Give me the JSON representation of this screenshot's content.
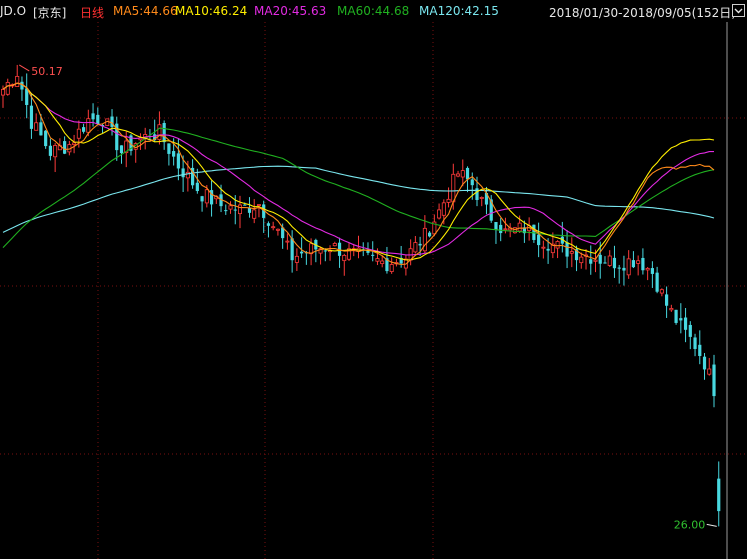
{
  "header": {
    "symbol": "JD.O",
    "name": "[京东]",
    "period": "日线",
    "ma5": "MA5:44.66",
    "ma10": "MA10:46.24",
    "ma20": "MA20:45.63",
    "ma60": "MA60:44.68",
    "ma120": "MA120:42.15",
    "range": "2018/01/30-2018/09/05(152日)",
    "dropdown_icon": "chevron-down-icon"
  },
  "colors": {
    "up": "#ff3b3b",
    "down": "#48d8e0",
    "ma5": "#ff8a1a",
    "ma10": "#ffee00",
    "ma20": "#e22be2",
    "ma60": "#20b020",
    "ma120": "#7ae6ee",
    "grid": "#7a0f0f",
    "background": "#000000",
    "high_label": "#ff5050",
    "low_label": "#30c030"
  },
  "chart_data": {
    "type": "candlestick",
    "title": "",
    "xlabel": "",
    "ylabel": "",
    "period_start": "2018/01/30",
    "period_end": "2018/09/05",
    "trading_days": 152,
    "ylim": [
      24.5,
      52
    ],
    "grid": true,
    "annotations": [
      {
        "text": "50.17",
        "type": "high",
        "value": 50.17
      },
      {
        "text": "26.00",
        "type": "low",
        "value": 26.0
      }
    ],
    "anchors_close": [
      [
        0,
        48.9
      ],
      [
        3,
        49.8
      ],
      [
        6,
        47.2
      ],
      [
        10,
        45.6
      ],
      [
        14,
        46.0
      ],
      [
        18,
        47.3
      ],
      [
        21,
        47.4
      ],
      [
        25,
        45.6
      ],
      [
        29,
        46.3
      ],
      [
        33,
        46.6
      ],
      [
        37,
        44.9
      ],
      [
        42,
        43.4
      ],
      [
        46,
        42.8
      ],
      [
        50,
        42.6
      ],
      [
        54,
        42.9
      ],
      [
        58,
        41.4
      ],
      [
        61,
        40.1
      ],
      [
        65,
        40.5
      ],
      [
        69,
        40.7
      ],
      [
        73,
        40.3
      ],
      [
        77,
        40.0
      ],
      [
        81,
        39.8
      ],
      [
        85,
        40.1
      ],
      [
        89,
        41.2
      ],
      [
        92,
        42.5
      ],
      [
        94,
        43.5
      ],
      [
        96,
        44.5
      ],
      [
        99,
        43.9
      ],
      [
        102,
        42.5
      ],
      [
        106,
        41.4
      ],
      [
        110,
        41.6
      ],
      [
        114,
        41.0
      ],
      [
        118,
        40.5
      ],
      [
        122,
        40.3
      ],
      [
        126,
        40.0
      ],
      [
        130,
        39.8
      ],
      [
        134,
        40.0
      ],
      [
        137,
        39.3
      ],
      [
        140,
        37.6
      ],
      [
        143,
        36.4
      ],
      [
        146,
        35.5
      ],
      [
        148,
        34.6
      ],
      [
        150,
        33.2
      ],
      [
        151,
        26.8
      ]
    ],
    "moving_averages": [
      {
        "name": "MA5",
        "value": 44.66
      },
      {
        "name": "MA10",
        "value": 46.24
      },
      {
        "name": "MA20",
        "value": 45.63
      },
      {
        "name": "MA60",
        "value": 44.68
      },
      {
        "name": "MA120",
        "value": 42.15
      }
    ]
  }
}
